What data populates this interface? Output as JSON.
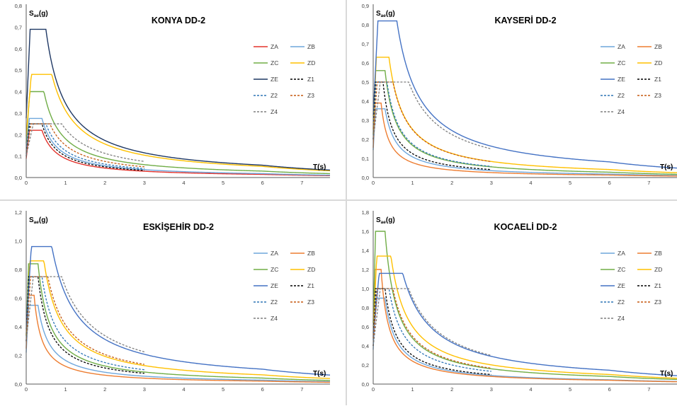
{
  "chart_data": [
    {
      "type": "line",
      "title": "KONYA DD-2",
      "ylabel_main": "S",
      "ylabel_sub": "ae",
      "ylabel_tail": "(g)",
      "xlabel": "T(s)",
      "xlim": [
        0,
        8
      ],
      "ylim": [
        0,
        0.8
      ],
      "yticks": [
        "0,0",
        "0,1",
        "0,2",
        "0,3",
        "0,4",
        "0,5",
        "0,6",
        "0,7",
        "0,8"
      ],
      "xticks": [
        "0",
        "1",
        "2",
        "3",
        "4",
        "5",
        "6",
        "7",
        "8"
      ],
      "series": [
        {
          "name": "ZA",
          "color": "#e3332c",
          "dash": false,
          "peak": 0.22,
          "tb": 0.4,
          "tl": 8
        },
        {
          "name": "ZB",
          "color": "#6fa7dc",
          "dash": false,
          "peak": 0.275,
          "tb": 0.4,
          "tl": 8
        },
        {
          "name": "ZC",
          "color": "#70ad47",
          "dash": false,
          "peak": 0.4,
          "tb": 0.45,
          "tl": 8
        },
        {
          "name": "ZD",
          "color": "#ffc000",
          "dash": false,
          "peak": 0.48,
          "tb": 0.65,
          "tl": 8
        },
        {
          "name": "ZE",
          "color": "#1f3864",
          "dash": false,
          "peak": 0.69,
          "tb": 0.5,
          "tl": 8
        },
        {
          "name": "Z1",
          "color": "#000000",
          "dash": true,
          "peak": 0.25,
          "tb": 0.4,
          "tl": 3
        },
        {
          "name": "Z2",
          "color": "#2e75b6",
          "dash": true,
          "peak": 0.25,
          "tb": 0.5,
          "tl": 3
        },
        {
          "name": "Z3",
          "color": "#c55a11",
          "dash": true,
          "peak": 0.25,
          "tb": 0.6,
          "tl": 3
        },
        {
          "name": "Z4",
          "color": "#7f7f7f",
          "dash": true,
          "peak": 0.25,
          "tb": 0.9,
          "tl": 3
        }
      ]
    },
    {
      "type": "line",
      "title": "KAYSERİ DD-2",
      "ylabel_main": "S",
      "ylabel_sub": "ae",
      "ylabel_tail": "(g)",
      "xlabel": "T(s)",
      "xlim": [
        0,
        8
      ],
      "ylim": [
        0,
        0.9
      ],
      "yticks": [
        "0,0",
        "0,1",
        "0,2",
        "0,3",
        "0,4",
        "0,5",
        "0,6",
        "0,7",
        "0,8",
        "0,9"
      ],
      "xticks": [
        "0",
        "1",
        "2",
        "3",
        "4",
        "5",
        "6",
        "7"
      ],
      "series": [
        {
          "name": "ZA",
          "color": "#6fa7dc",
          "dash": false,
          "peak": 0.36,
          "tb": 0.3,
          "tl": 8
        },
        {
          "name": "ZB",
          "color": "#ed7d31",
          "dash": false,
          "peak": 0.39,
          "tb": 0.2,
          "tl": 8
        },
        {
          "name": "ZC",
          "color": "#70ad47",
          "dash": false,
          "peak": 0.56,
          "tb": 0.3,
          "tl": 8
        },
        {
          "name": "ZD",
          "color": "#ffc000",
          "dash": false,
          "peak": 0.63,
          "tb": 0.4,
          "tl": 8
        },
        {
          "name": "ZE",
          "color": "#4472c4",
          "dash": false,
          "peak": 0.82,
          "tb": 0.6,
          "tl": 8
        },
        {
          "name": "Z1",
          "color": "#000000",
          "dash": true,
          "peak": 0.5,
          "tb": 0.25,
          "tl": 3
        },
        {
          "name": "Z2",
          "color": "#2e75b6",
          "dash": true,
          "peak": 0.5,
          "tb": 0.35,
          "tl": 3
        },
        {
          "name": "Z3",
          "color": "#c55a11",
          "dash": true,
          "peak": 0.5,
          "tb": 0.5,
          "tl": 3
        },
        {
          "name": "Z4",
          "color": "#7f7f7f",
          "dash": true,
          "peak": 0.5,
          "tb": 0.9,
          "tl": 3
        }
      ]
    },
    {
      "type": "line",
      "title": "ESKİŞEHİR DD-2",
      "ylabel_main": "S",
      "ylabel_sub": "ae",
      "ylabel_tail": "(g)",
      "xlabel": "T(s)",
      "xlim": [
        0,
        8
      ],
      "ylim": [
        0,
        1.2
      ],
      "yticks": [
        "0,0",
        "0,2",
        "0,4",
        "0,6",
        "0,8",
        "1,0",
        "1,2"
      ],
      "xticks": [
        "0",
        "1",
        "2",
        "3",
        "4",
        "5",
        "6",
        "7",
        "8"
      ],
      "series": [
        {
          "name": "ZA",
          "color": "#6fa7dc",
          "dash": false,
          "peak": 0.55,
          "tb": 0.3,
          "tl": 8
        },
        {
          "name": "ZB",
          "color": "#ed7d31",
          "dash": false,
          "peak": 0.62,
          "tb": 0.2,
          "tl": 8
        },
        {
          "name": "ZC",
          "color": "#70ad47",
          "dash": false,
          "peak": 0.84,
          "tb": 0.3,
          "tl": 8
        },
        {
          "name": "ZD",
          "color": "#ffc000",
          "dash": false,
          "peak": 0.86,
          "tb": 0.45,
          "tl": 8
        },
        {
          "name": "ZE",
          "color": "#4472c4",
          "dash": false,
          "peak": 0.96,
          "tb": 0.65,
          "tl": 8
        },
        {
          "name": "Z1",
          "color": "#000000",
          "dash": true,
          "peak": 0.75,
          "tb": 0.3,
          "tl": 3
        },
        {
          "name": "Z2",
          "color": "#2e75b6",
          "dash": true,
          "peak": 0.75,
          "tb": 0.4,
          "tl": 3
        },
        {
          "name": "Z3",
          "color": "#c55a11",
          "dash": true,
          "peak": 0.75,
          "tb": 0.55,
          "tl": 3
        },
        {
          "name": "Z4",
          "color": "#7f7f7f",
          "dash": true,
          "peak": 0.75,
          "tb": 0.9,
          "tl": 3
        }
      ]
    },
    {
      "type": "line",
      "title": "KOCAELİ DD-2",
      "ylabel_main": "S",
      "ylabel_sub": "ae",
      "ylabel_tail": "(g)",
      "xlabel": "T(s)",
      "xlim": [
        0,
        8
      ],
      "ylim": [
        0,
        1.8
      ],
      "yticks": [
        "0,0",
        "0,2",
        "0,4",
        "0,6",
        "0,8",
        "1,0",
        "1,2",
        "1,4",
        "1,6",
        "1,8"
      ],
      "xticks": [
        "0",
        "1",
        "2",
        "3",
        "4",
        "5",
        "6",
        "7",
        "8"
      ],
      "series": [
        {
          "name": "ZA",
          "color": "#6fa7dc",
          "dash": false,
          "peak": 0.9,
          "tb": 0.3,
          "tl": 8
        },
        {
          "name": "ZB",
          "color": "#ed7d31",
          "dash": false,
          "peak": 1.2,
          "tb": 0.2,
          "tl": 8
        },
        {
          "name": "ZC",
          "color": "#70ad47",
          "dash": false,
          "peak": 1.6,
          "tb": 0.3,
          "tl": 8
        },
        {
          "name": "ZD",
          "color": "#ffc000",
          "dash": false,
          "peak": 1.34,
          "tb": 0.45,
          "tl": 8
        },
        {
          "name": "ZE",
          "color": "#4472c4",
          "dash": false,
          "peak": 1.16,
          "tb": 0.75,
          "tl": 8
        },
        {
          "name": "Z1",
          "color": "#000000",
          "dash": true,
          "peak": 1.0,
          "tb": 0.3,
          "tl": 3
        },
        {
          "name": "Z2",
          "color": "#2e75b6",
          "dash": true,
          "peak": 1.0,
          "tb": 0.4,
          "tl": 3
        },
        {
          "name": "Z3",
          "color": "#c55a11",
          "dash": true,
          "peak": 1.0,
          "tb": 0.5,
          "tl": 3
        },
        {
          "name": "Z4",
          "color": "#7f7f7f",
          "dash": true,
          "peak": 1.0,
          "tb": 0.9,
          "tl": 3
        }
      ]
    }
  ]
}
